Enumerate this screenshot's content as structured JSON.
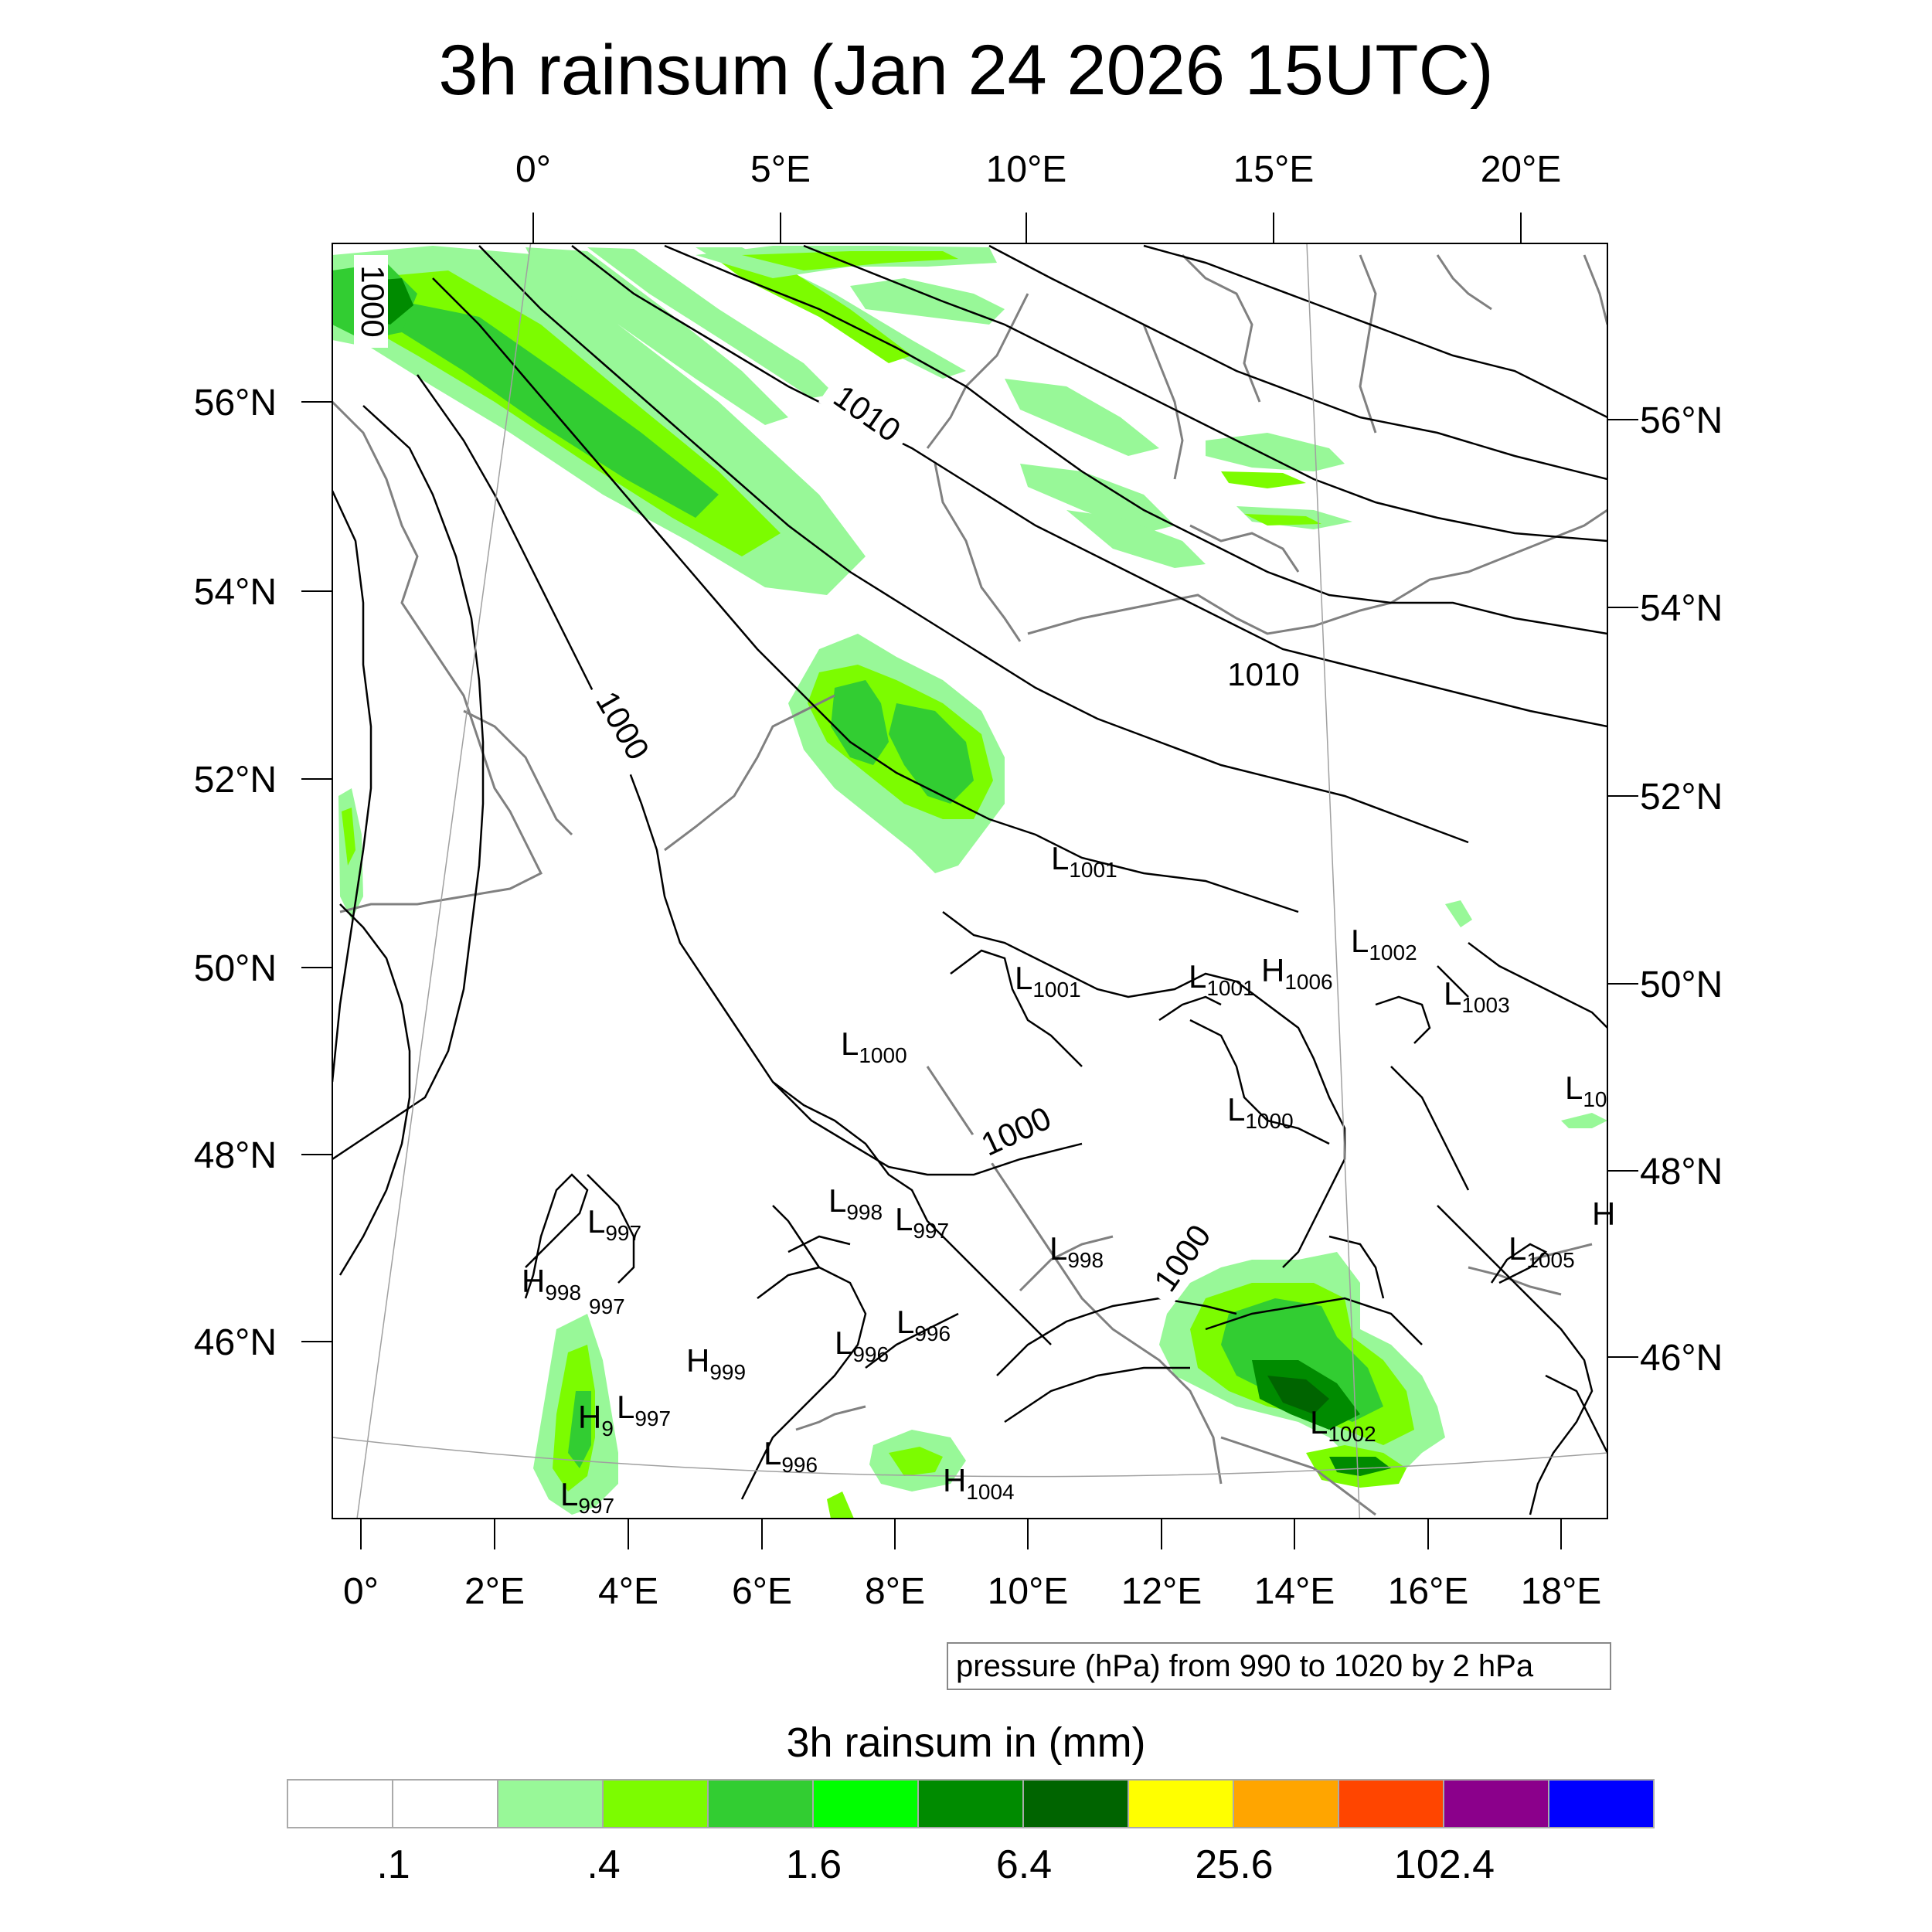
{
  "title": "3h rainsum (Jan 24 2026 15UTC)",
  "top_lon_labels": [
    "0°",
    "5°E",
    "10°E",
    "15°E",
    "20°E"
  ],
  "right_lat_labels": [
    "56°N",
    "54°N",
    "52°N",
    "50°N",
    "48°N",
    "46°N"
  ],
  "left_lat_labels": [
    "56°N",
    "54°N",
    "52°N",
    "50°N",
    "48°N",
    "46°N"
  ],
  "bottom_lon_labels": [
    "0°",
    "2°E",
    "4°E",
    "6°E",
    "8°E",
    "10°E",
    "12°E",
    "14°E",
    "16°E",
    "18°E"
  ],
  "contour_labels": [
    "1000",
    "1010",
    "1000",
    "1010",
    "1000",
    "1000"
  ],
  "pressure_centers": [
    {
      "type": "L",
      "value": "1001"
    },
    {
      "type": "L",
      "value": "1002"
    },
    {
      "type": "L",
      "value": "1001"
    },
    {
      "type": "L",
      "value": "1001"
    },
    {
      "type": "H",
      "value": "1006"
    },
    {
      "type": "L",
      "value": "1003"
    },
    {
      "type": "L",
      "value": "1000"
    },
    {
      "type": "L",
      "value": "1000"
    },
    {
      "type": "L",
      "value": "10"
    },
    {
      "type": "L",
      "value": "997"
    },
    {
      "type": "L",
      "value": "998"
    },
    {
      "type": "L",
      "value": "997"
    },
    {
      "type": "L",
      "value": "998"
    },
    {
      "type": "L",
      "value": "1005"
    },
    {
      "type": "H",
      "value": "998"
    },
    {
      "type": "",
      "value": "997"
    },
    {
      "type": "H",
      "value": "999"
    },
    {
      "type": "L",
      "value": "996"
    },
    {
      "type": "L",
      "value": "996"
    },
    {
      "type": "H",
      "value": "9"
    },
    {
      "type": "L",
      "value": "997"
    },
    {
      "type": "L",
      "value": "996"
    },
    {
      "type": "L",
      "value": "997"
    },
    {
      "type": "H",
      "value": "1004"
    },
    {
      "type": "L",
      "value": "1002"
    },
    {
      "type": "H",
      "value": ""
    }
  ],
  "pressure_note": "pressure (hPa) from 990 to 1020 by 2 hPa",
  "colorbar": {
    "title": "3h rainsum in (mm)",
    "colors": [
      "#ffffff",
      "#ffffff",
      "#98f898",
      "#7cfc00",
      "#32cd32",
      "#00ff00",
      "#008b00",
      "#006400",
      "#ffff00",
      "#ffa500",
      "#ff4500",
      "#8b008b",
      "#0000ff"
    ],
    "labels": [
      ".1",
      ".4",
      "1.6",
      "6.4",
      "25.6",
      "102.4"
    ]
  },
  "colors": {
    "coast": "#808080",
    "isobar": "#000000",
    "grid": "#a0a0a0"
  }
}
